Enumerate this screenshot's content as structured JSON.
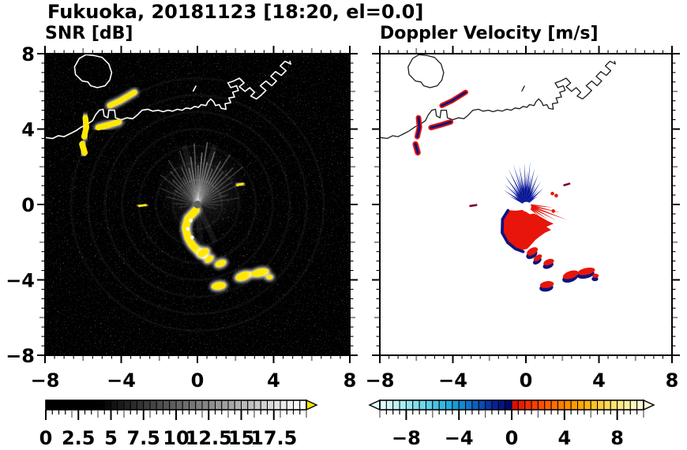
{
  "header": {
    "title": "Fukuoka, 20181123 [18:20, el=0.0]"
  },
  "chart_data": {
    "type": "heatmap",
    "description": "Two radar PPI panels over the Fukuoka coastline: left = SNR [dB] on black background with yellow strong echoes and white ray artifacts from the radar at (0,0); right = Doppler velocity [m/s] on white background with blue (negative) spikes above the radar and red (positive) echoes below; same coastal echoes appear in both panels.",
    "panels": [
      {
        "id": "snr",
        "label": "SNR [dB]",
        "xlim": [
          -8,
          8
        ],
        "ylim": [
          -8,
          8
        ],
        "xticks": [
          -8,
          -4,
          0,
          4,
          8
        ],
        "xtick_labels": [
          "−8",
          "−4",
          "0",
          "4",
          "8"
        ],
        "yticks": [
          8,
          4,
          0,
          -4,
          -8
        ],
        "ytick_labels": [
          "8",
          "4",
          "0",
          "−4",
          "−8"
        ],
        "minor_tick_step": 0.5,
        "mid_tick_step": 2,
        "major_tick_step": 4,
        "background": "#000000",
        "colorbar": {
          "min": 0,
          "max": 20,
          "tick_values": [
            0,
            2.5,
            5,
            7.5,
            10,
            12.5,
            15,
            17.5
          ],
          "tick_labels": [
            "0",
            "2.5",
            "5",
            "7.5",
            "10",
            "12.5",
            "15",
            "17.5"
          ],
          "over_arrow_color": "#ffe600",
          "colors": [
            "#000000",
            "#000000",
            "#000000",
            "#000000",
            "#000000",
            "#000000",
            "#000000",
            "#000000",
            "#010101",
            "#090909",
            "#121212",
            "#1a1a1a",
            "#222222",
            "#2b2b2b",
            "#333333",
            "#3b3b3b",
            "#444444",
            "#4c4c4c",
            "#545454",
            "#5d5d5d",
            "#656565",
            "#6d6d6d",
            "#757575",
            "#7e7e7e",
            "#868686",
            "#8e8e8e",
            "#979797",
            "#9f9f9f",
            "#a7a7a7",
            "#b0b0b0",
            "#b8b8b8",
            "#c0c0c0",
            "#c9c9c9",
            "#d1d1d1",
            "#d9d9d9",
            "#e2e2e2",
            "#eaeaea",
            "#f2f2f2",
            "#fbfbfb",
            "#ffffff"
          ]
        }
      },
      {
        "id": "velocity",
        "label": "Doppler Velocity [m/s]",
        "xlim": [
          -8,
          8
        ],
        "ylim": [
          -8,
          8
        ],
        "xticks": [
          -8,
          -4,
          0,
          4,
          8
        ],
        "xtick_labels": [
          "−8",
          "−4",
          "0",
          "4",
          "8"
        ],
        "yticks": [
          8,
          4,
          0,
          -4,
          -8
        ],
        "ytick_labels": [],
        "minor_tick_step": 0.5,
        "mid_tick_step": 2,
        "major_tick_step": 4,
        "background": "#ffffff",
        "colorbar": {
          "min": -10,
          "max": 10,
          "tick_values": [
            -8,
            -4,
            0,
            4,
            8
          ],
          "tick_labels": [
            "−8",
            "−4",
            "0",
            "4",
            "8"
          ],
          "under_arrow_color": "#e4feff",
          "over_arrow_color": "#fffbd9",
          "colors": [
            "#e2fdfd",
            "#d0f8fa",
            "#bef3f7",
            "#abedf4",
            "#98e6f1",
            "#84dfee",
            "#70d7ea",
            "#5ccde7",
            "#48c3e3",
            "#35b7df",
            "#23abdb",
            "#189bd6",
            "#1489d1",
            "#1074c9",
            "#0d5fc0",
            "#0a4ab4",
            "#0736a5",
            "#052493",
            "#031480",
            "#02086b",
            "#e00d00",
            "#e91e00",
            "#f12e00",
            "#f73e00",
            "#fb4e00",
            "#fe5e00",
            "#ff6d00",
            "#ff7c00",
            "#ff8b00",
            "#ff9a00",
            "#ffa800",
            "#ffb50e",
            "#ffc226",
            "#ffce3e",
            "#ffd957",
            "#ffe270",
            "#ffea89",
            "#fff1a2",
            "#fff6bb",
            "#fffad4"
          ]
        }
      }
    ],
    "coastline": {
      "color_snr": "#ffffff",
      "color_velocity": "#1c1c1c",
      "island": [
        [
          -5.85,
          7.95
        ],
        [
          -6.2,
          7.75
        ],
        [
          -6.45,
          7.3
        ],
        [
          -6.4,
          6.9
        ],
        [
          -6.05,
          6.55
        ],
        [
          -5.75,
          6.5
        ],
        [
          -5.6,
          6.3
        ],
        [
          -5.25,
          6.2
        ],
        [
          -4.85,
          6.3
        ],
        [
          -4.6,
          6.6
        ],
        [
          -4.5,
          7.0
        ],
        [
          -4.65,
          7.45
        ],
        [
          -5.0,
          7.8
        ],
        [
          -5.4,
          7.9
        ],
        [
          -5.85,
          7.95
        ]
      ],
      "islet": [
        [
          -0.22,
          6.02
        ],
        [
          -0.08,
          6.28
        ]
      ],
      "mainland": [
        [
          -8,
          3.55
        ],
        [
          -7.6,
          3.5
        ],
        [
          -7.3,
          3.65
        ],
        [
          -7.0,
          3.6
        ],
        [
          -6.7,
          3.75
        ],
        [
          -6.4,
          3.9
        ],
        [
          -6.1,
          4.1
        ],
        [
          -5.8,
          4.25
        ],
        [
          -5.5,
          4.45
        ],
        [
          -5.35,
          4.75
        ],
        [
          -5.15,
          5.0
        ],
        [
          -4.95,
          5.05
        ],
        [
          -4.9,
          4.7
        ],
        [
          -4.7,
          4.6
        ],
        [
          -4.65,
          5.0
        ],
        [
          -4.35,
          5.0
        ],
        [
          -4.3,
          4.6
        ],
        [
          -4.0,
          4.5
        ],
        [
          -3.7,
          4.6
        ],
        [
          -3.4,
          4.55
        ],
        [
          -3.15,
          4.75
        ],
        [
          -2.9,
          5.0
        ],
        [
          -2.6,
          5.05
        ],
        [
          -2.35,
          4.95
        ],
        [
          -2.05,
          5.0
        ],
        [
          -1.8,
          4.92
        ],
        [
          -1.55,
          5.0
        ],
        [
          -1.3,
          4.95
        ],
        [
          -1.05,
          5.05
        ],
        [
          -0.8,
          5.0
        ],
        [
          -0.6,
          5.12
        ],
        [
          -0.35,
          5.08
        ],
        [
          -0.15,
          5.2
        ],
        [
          0.05,
          5.15
        ],
        [
          0.2,
          5.3
        ],
        [
          0.45,
          5.25
        ],
        [
          0.55,
          5.45
        ],
        [
          0.7,
          5.6
        ],
        [
          0.85,
          5.45
        ],
        [
          0.95,
          5.25
        ],
        [
          1.15,
          5.3
        ],
        [
          1.25,
          5.1
        ],
        [
          1.5,
          5.05
        ],
        [
          1.45,
          5.35
        ],
        [
          1.75,
          5.4
        ],
        [
          1.65,
          5.65
        ],
        [
          1.95,
          5.7
        ],
        [
          1.85,
          5.95
        ],
        [
          2.15,
          6.05
        ],
        [
          2.05,
          6.3
        ],
        [
          1.75,
          6.2
        ],
        [
          1.6,
          6.45
        ],
        [
          1.9,
          6.55
        ],
        [
          2.2,
          6.7
        ],
        [
          2.45,
          6.45
        ],
        [
          2.2,
          6.25
        ],
        [
          2.5,
          6.0
        ],
        [
          2.75,
          6.2
        ],
        [
          3.0,
          5.95
        ],
        [
          2.8,
          5.75
        ],
        [
          3.1,
          5.6
        ],
        [
          3.35,
          5.8
        ],
        [
          3.6,
          6.05
        ],
        [
          3.3,
          6.3
        ],
        [
          3.6,
          6.55
        ],
        [
          3.9,
          6.3
        ],
        [
          4.15,
          6.55
        ],
        [
          3.85,
          6.8
        ],
        [
          4.1,
          7.05
        ],
        [
          4.4,
          6.85
        ],
        [
          4.65,
          7.1
        ],
        [
          4.35,
          7.35
        ],
        [
          4.6,
          7.6
        ],
        [
          4.9,
          7.45
        ],
        [
          4.85,
          7.6
        ]
      ]
    },
    "shared_echoes": {
      "coastal_streaks": [
        {
          "pts": [
            [
              -4.6,
              5.25
            ],
            [
              -4.05,
              5.5
            ],
            [
              -3.3,
              5.95
            ]
          ],
          "w": 0.28
        },
        {
          "pts": [
            [
              -5.88,
              4.6
            ],
            [
              -5.83,
              4.1
            ],
            [
              -5.95,
              3.6
            ]
          ],
          "w": 0.3
        },
        {
          "pts": [
            [
              -6.05,
              3.2
            ],
            [
              -5.92,
              2.75
            ]
          ],
          "w": 0.32
        },
        {
          "pts": [
            [
              -5.2,
              4.08
            ],
            [
              -4.65,
              4.22
            ],
            [
              -4.12,
              4.38
            ]
          ],
          "w": 0.3
        },
        {
          "pts": [
            [
              -3.05,
              -0.08
            ],
            [
              -2.72,
              -0.03
            ]
          ],
          "w": 0.12
        },
        {
          "pts": [
            [
              2.1,
              1.02
            ],
            [
              2.38,
              1.1
            ]
          ],
          "w": 0.12
        }
      ],
      "chain_blobs": [
        {
          "c": [
            0.32,
            -2.56
          ],
          "rx": 0.33,
          "ry": 0.2,
          "rot": -30
        },
        {
          "c": [
            0.62,
            -2.9
          ],
          "rx": 0.26,
          "ry": 0.15,
          "rot": -35
        },
        {
          "c": [
            1.22,
            -3.13
          ],
          "rx": 0.3,
          "ry": 0.17,
          "rot": -20
        },
        {
          "c": [
            1.12,
            -4.32
          ],
          "rx": 0.38,
          "ry": 0.2,
          "rot": -8
        },
        {
          "c": [
            2.42,
            -3.8
          ],
          "rx": 0.44,
          "ry": 0.22,
          "rot": -18
        },
        {
          "c": [
            3.28,
            -3.62
          ],
          "rx": 0.48,
          "ry": 0.2,
          "rot": -12
        },
        {
          "c": [
            3.78,
            -3.85
          ],
          "rx": 0.18,
          "ry": 0.12,
          "rot": 0
        }
      ]
    },
    "snr_features": {
      "echo_color": "#ffe800",
      "center_disk": {
        "c": [
          0,
          0
        ],
        "r": 0.2,
        "color": "#5f5f5f"
      },
      "arc": {
        "pts": [
          [
            -0.08,
            -0.3
          ],
          [
            -0.5,
            -0.75
          ],
          [
            -0.62,
            -1.25
          ],
          [
            -0.5,
            -1.75
          ],
          [
            -0.3,
            -2.12
          ],
          [
            -0.02,
            -2.42
          ],
          [
            0.35,
            -2.68
          ]
        ],
        "w": 0.38
      },
      "arc_core_dots": [
        [
          -0.35,
          -0.85
        ],
        [
          -0.5,
          -1.3
        ],
        [
          -0.28,
          -1.75
        ]
      ],
      "rays": [
        [
          -100,
          1.0,
          0.1
        ],
        [
          -88,
          1.25,
          0.12
        ],
        [
          -76,
          1.7,
          0.15
        ],
        [
          -66,
          2.1,
          0.14
        ],
        [
          -58,
          1.45,
          0.18
        ],
        [
          -51,
          2.5,
          0.16
        ],
        [
          -45,
          1.85,
          0.22
        ],
        [
          -39,
          2.25,
          0.18
        ],
        [
          -33,
          2.8,
          0.2
        ],
        [
          -28,
          1.6,
          0.24
        ],
        [
          -23,
          2.15,
          0.26
        ],
        [
          -18,
          3.0,
          0.22
        ],
        [
          -13,
          2.0,
          0.3
        ],
        [
          -8,
          2.55,
          0.34
        ],
        [
          -3,
          3.25,
          0.3
        ],
        [
          1,
          2.1,
          0.36
        ],
        [
          5,
          2.75,
          0.4
        ],
        [
          9,
          3.35,
          0.34
        ],
        [
          13,
          2.3,
          0.32
        ],
        [
          18,
          2.95,
          0.3
        ],
        [
          23,
          2.05,
          0.28
        ],
        [
          28,
          2.6,
          0.3
        ],
        [
          33,
          3.15,
          0.26
        ],
        [
          38,
          2.2,
          0.24
        ],
        [
          44,
          2.7,
          0.22
        ],
        [
          50,
          3.1,
          0.2
        ],
        [
          57,
          2.1,
          0.18
        ],
        [
          64,
          2.6,
          0.16
        ],
        [
          72,
          1.7,
          0.14
        ],
        [
          81,
          2.2,
          0.12
        ],
        [
          91,
          1.3,
          0.1
        ],
        [
          103,
          1.0,
          0.09
        ]
      ],
      "wide_rays": [
        [
          -12,
          3.2,
          0.07
        ],
        [
          16,
          3.3,
          0.07
        ],
        [
          155,
          2.2,
          0.07
        ],
        [
          175,
          2.6,
          0.06
        ],
        [
          198,
          2.0,
          0.06
        ]
      ]
    },
    "velocity_features": {
      "red": "#e8150a",
      "navy": "#0d1480",
      "blue_bright": "#1533cc",
      "spikes_navy": [
        [
          -64,
          1.0
        ],
        [
          -58,
          1.45
        ],
        [
          -52,
          0.85
        ],
        [
          -47,
          1.6
        ],
        [
          -42,
          1.15
        ],
        [
          -37,
          1.95
        ],
        [
          -32,
          1.3
        ],
        [
          -27,
          2.1
        ],
        [
          -22,
          1.5
        ],
        [
          -18,
          2.25
        ],
        [
          -14,
          1.7
        ],
        [
          -10,
          2.1
        ],
        [
          -6,
          1.5
        ],
        [
          -2,
          2.2
        ],
        [
          2,
          1.8
        ],
        [
          6,
          2.3
        ],
        [
          10,
          1.6
        ],
        [
          14,
          2.0
        ],
        [
          18,
          1.3
        ],
        [
          23,
          1.75
        ],
        [
          28,
          1.15
        ],
        [
          34,
          1.5
        ],
        [
          41,
          1.0
        ],
        [
          48,
          1.3
        ],
        [
          55,
          0.8
        ]
      ],
      "spikes_red": [
        [
          96,
          1.5
        ],
        [
          103,
          2.0
        ],
        [
          110,
          2.45
        ],
        [
          117,
          1.9
        ],
        [
          124,
          1.45
        ],
        [
          131,
          1.1
        ]
      ],
      "red_blob": [
        [
          -0.15,
          -0.28
        ],
        [
          -0.55,
          -0.33
        ],
        [
          -0.95,
          -0.3
        ],
        [
          -1.08,
          -0.62
        ],
        [
          -1.28,
          -0.8
        ],
        [
          -1.22,
          -1.1
        ],
        [
          -1.28,
          -1.5
        ],
        [
          -1.02,
          -1.85
        ],
        [
          -0.85,
          -2.12
        ],
        [
          -0.55,
          -2.3
        ],
        [
          -0.22,
          -2.42
        ],
        [
          0.08,
          -2.35
        ],
        [
          0.3,
          -2.12
        ],
        [
          0.52,
          -1.88
        ],
        [
          0.78,
          -1.68
        ],
        [
          1.05,
          -1.5
        ],
        [
          1.38,
          -1.35
        ],
        [
          1.12,
          -1.18
        ],
        [
          1.52,
          -1.02
        ],
        [
          1.2,
          -0.88
        ],
        [
          0.92,
          -0.72
        ],
        [
          0.65,
          -0.58
        ],
        [
          0.42,
          -0.48
        ],
        [
          0.22,
          -0.52
        ],
        [
          0.05,
          -0.42
        ]
      ],
      "navy_fringe": {
        "pts": [
          [
            -0.98,
            -0.32
          ],
          [
            -1.28,
            -0.78
          ],
          [
            -1.3,
            -1.5
          ],
          [
            -1.0,
            -2.02
          ],
          [
            -0.58,
            -2.35
          ],
          [
            -0.15,
            -2.5
          ]
        ],
        "w": 0.16
      },
      "hole": {
        "c": [
          0.02,
          -0.12
        ],
        "r": 0.27
      },
      "red_dots": [
        [
          1.45,
          0.58
        ],
        [
          1.66,
          0.47
        ],
        [
          1.5,
          -0.35
        ]
      ]
    }
  }
}
